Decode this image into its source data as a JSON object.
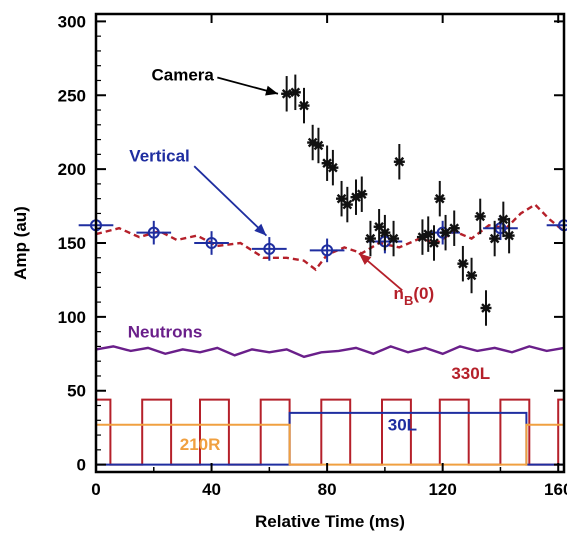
{
  "chart_data": {
    "type": "scatter",
    "xlabel": "Relative Time (ms)",
    "ylabel": "Amp (au)",
    "xlim": [
      0,
      162
    ],
    "ylim": [
      -5,
      305
    ],
    "xticks": [
      0,
      40,
      80,
      120,
      160
    ],
    "yticks": [
      0,
      50,
      100,
      150,
      200,
      250,
      300
    ],
    "grid": false,
    "colors": {
      "camera": "#111111",
      "vertical": "#1f2ea0",
      "nb0": "#b5202a",
      "neutrons": "#6a1f8a",
      "pulse_330L": "#b5202a",
      "pulse_30L": "#1f2ea0",
      "pulse_210R": "#f0a040"
    },
    "annotations": {
      "camera": "Camera",
      "vertical": "Vertical",
      "nb0_main": "n",
      "nb0_sub": "B",
      "nb0_tail": "(0)",
      "neutrons": "Neutrons",
      "pulse_330L": "330L",
      "pulse_30L": "30L",
      "pulse_210R": "210R"
    },
    "series": [
      {
        "name": "Camera",
        "marker": "asterisk",
        "x": [
          66,
          69,
          72,
          75,
          77,
          80,
          82,
          85,
          87,
          90,
          92,
          95,
          98,
          100,
          103,
          105,
          113,
          115,
          117,
          119,
          121,
          124,
          127,
          130,
          133,
          135,
          138,
          141,
          143
        ],
        "y": [
          251,
          252,
          243,
          218,
          216,
          204,
          201,
          180,
          176,
          181,
          183,
          153,
          161,
          157,
          153,
          205,
          154,
          156,
          150,
          180,
          157,
          160,
          136,
          128,
          168,
          106,
          153,
          166,
          155
        ],
        "yerr": [
          12,
          12,
          12,
          12,
          12,
          12,
          12,
          12,
          12,
          12,
          12,
          12,
          12,
          12,
          12,
          12,
          12,
          12,
          12,
          12,
          12,
          12,
          12,
          12,
          12,
          12,
          12,
          12,
          12
        ]
      },
      {
        "name": "Vertical",
        "marker": "circle-plus",
        "x": [
          0,
          20,
          40,
          60,
          80,
          100,
          120,
          140,
          162
        ],
        "y": [
          162,
          157,
          150,
          146,
          145,
          151,
          157,
          160,
          162
        ],
        "xerr": [
          6,
          6,
          6,
          6,
          6,
          6,
          6,
          6,
          6
        ],
        "yerr": [
          8,
          8,
          8,
          8,
          8,
          8,
          8,
          8,
          8
        ]
      },
      {
        "name": "nB(0)",
        "style": "dashed",
        "x": [
          0,
          8,
          15,
          22,
          28,
          35,
          42,
          50,
          58,
          66,
          72,
          76,
          80,
          86,
          92,
          98,
          105,
          112,
          118,
          124,
          130,
          136,
          142,
          147,
          152,
          157,
          162
        ],
        "y": [
          156,
          160,
          154,
          158,
          152,
          155,
          148,
          150,
          140,
          140,
          138,
          132,
          142,
          147,
          143,
          150,
          147,
          153,
          150,
          158,
          153,
          162,
          160,
          170,
          176,
          166,
          158
        ]
      },
      {
        "name": "Neutrons",
        "style": "solid",
        "x": [
          0,
          6,
          12,
          18,
          24,
          30,
          36,
          42,
          48,
          54,
          60,
          66,
          72,
          78,
          84,
          90,
          96,
          102,
          108,
          114,
          120,
          126,
          132,
          138,
          144,
          150,
          156,
          162
        ],
        "y": [
          78,
          80,
          77,
          79,
          75,
          78,
          76,
          79,
          74,
          78,
          76,
          78,
          73,
          76,
          77,
          79,
          75,
          80,
          76,
          79,
          75,
          80,
          77,
          79,
          76,
          80,
          77,
          79
        ]
      },
      {
        "name": "330L",
        "style": "step",
        "levels": [
          0,
          44
        ],
        "on_intervals": [
          [
            0,
            5
          ],
          [
            16,
            26
          ],
          [
            36,
            46
          ],
          [
            57,
            67
          ],
          [
            78,
            88
          ],
          [
            99,
            109
          ],
          [
            119,
            129
          ],
          [
            140,
            150
          ],
          [
            160,
            162
          ]
        ]
      },
      {
        "name": "30L",
        "style": "step",
        "levels": [
          0,
          35
        ],
        "on_intervals": [
          [
            67,
            149
          ]
        ]
      },
      {
        "name": "210R",
        "style": "step",
        "levels": [
          0,
          27
        ],
        "on_intervals": [
          [
            0,
            67
          ],
          [
            149,
            162
          ]
        ]
      }
    ]
  }
}
